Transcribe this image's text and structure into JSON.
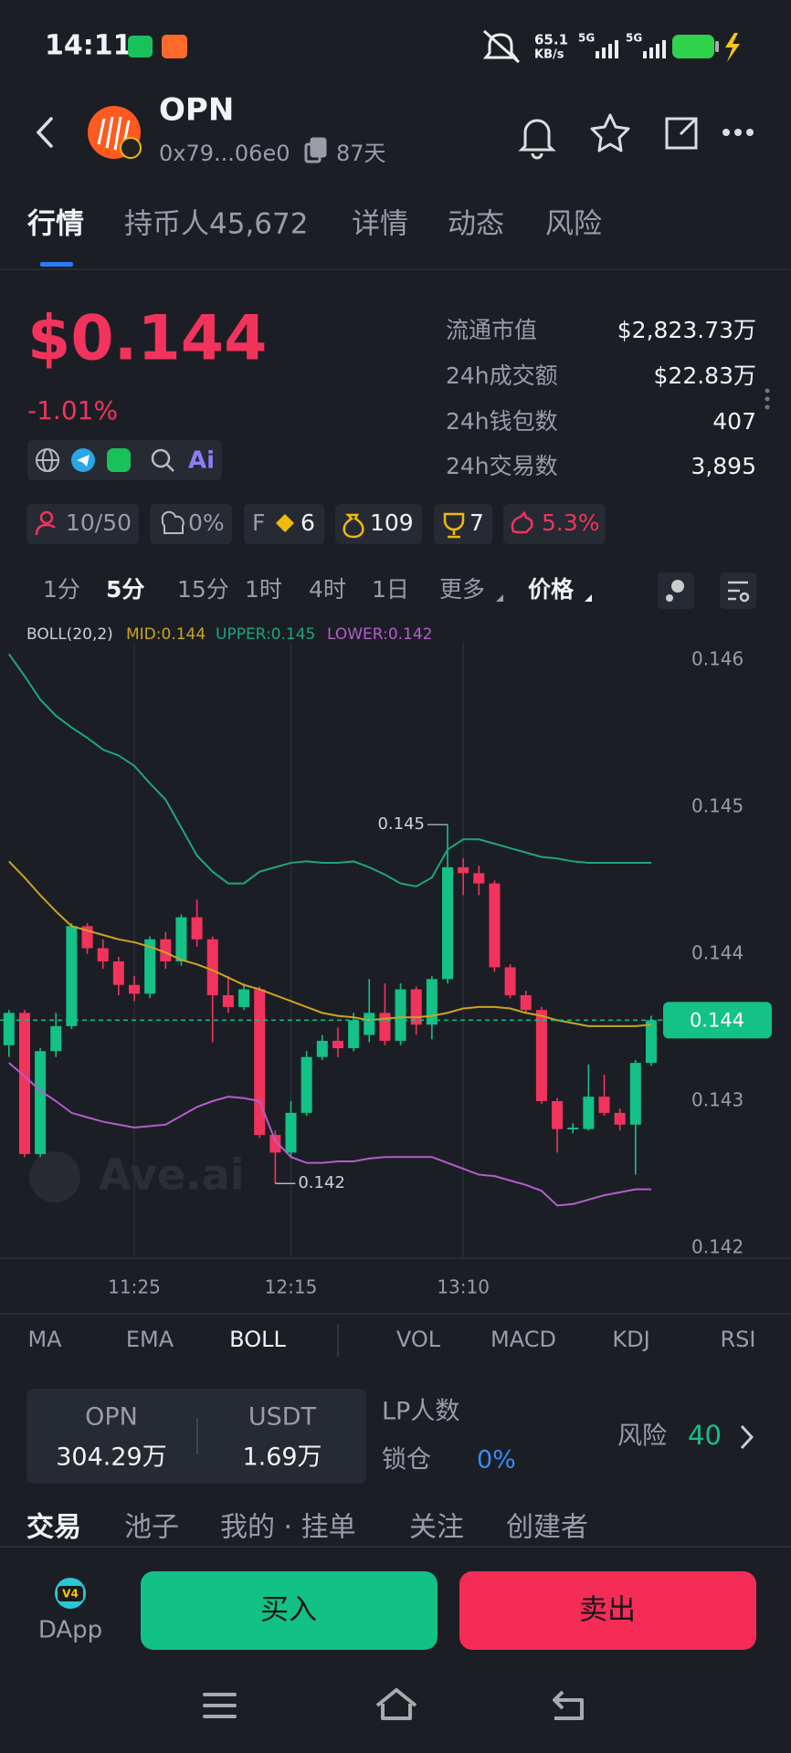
{
  "status_bar": {
    "time": "14:11",
    "speed": "65.1",
    "speed_unit": "KB/s",
    "net1": "5G",
    "net2": "5G"
  },
  "header": {
    "title": "OPN",
    "address": "0x79...06e0",
    "age": "87天"
  },
  "tabs": [
    "行情",
    "持币人45,672",
    "详情",
    "动态",
    "风险"
  ],
  "price": {
    "value": "$0.144",
    "change": "-1.01%",
    "ai": "Ai"
  },
  "stats": [
    [
      "流通市值",
      "$2,823.73万"
    ],
    [
      "24h成交额",
      "$22.83万"
    ],
    [
      "24h钱包数",
      "407"
    ],
    [
      "24h交易数",
      "3,895"
    ]
  ],
  "badges": {
    "holders": "10/50",
    "dev": "0%",
    "f_label": "F",
    "f_value": "6",
    "bag": "109",
    "trophy": "7",
    "pig": "5.3%"
  },
  "timeframes": [
    "1分",
    "5分",
    "15分",
    "1时",
    "4时",
    "1日",
    "更多",
    "价格"
  ],
  "chart_data": {
    "type": "candlestick",
    "legend_title": "BOLL(20,2)",
    "watermark": "Ave.ai",
    "up_color": "#14c186",
    "down_color": "#f2345c",
    "categories": [
      null,
      null,
      null,
      null,
      null,
      null,
      null,
      null,
      "11:25",
      null,
      null,
      null,
      null,
      null,
      null,
      null,
      null,
      null,
      "12:15",
      null,
      null,
      null,
      null,
      null,
      null,
      null,
      null,
      null,
      null,
      "13:10",
      null,
      null,
      null,
      null,
      null,
      null,
      null,
      null,
      null,
      null,
      null,
      null
    ],
    "open": [
      0.14338,
      0.1436,
      0.14264,
      0.14334,
      0.14351,
      0.14419,
      0.14404,
      0.14395,
      0.14379,
      0.14373,
      0.1441,
      0.14395,
      0.14425,
      0.1441,
      0.14372,
      0.14364,
      0.14376,
      0.14277,
      0.14265,
      0.14292,
      0.1433,
      0.14341,
      0.14336,
      0.14345,
      0.1436,
      0.14341,
      0.14376,
      0.14352,
      0.14383,
      0.14459,
      0.14455,
      0.14448,
      0.14391,
      0.14372,
      0.14362,
      0.143,
      0.14281,
      0.14281,
      0.14303,
      0.14292,
      0.14284,
      0.14326
    ],
    "high": [
      0.14362,
      0.14362,
      0.14336,
      0.1436,
      0.14421,
      0.14421,
      0.1441,
      0.14398,
      0.14385,
      0.14412,
      0.14415,
      0.14427,
      0.14437,
      0.14412,
      0.14385,
      0.1438,
      0.14378,
      0.1428,
      0.143,
      0.14334,
      0.14345,
      0.1435,
      0.1436,
      0.14383,
      0.1438,
      0.1438,
      0.14378,
      0.14385,
      0.14488,
      0.14465,
      0.1446,
      0.1445,
      0.14393,
      0.14375,
      0.14364,
      0.14302,
      0.14285,
      0.14325,
      0.14318,
      0.14295,
      0.14328,
      0.14358
    ],
    "low": [
      0.1433,
      0.14262,
      0.14262,
      0.1433,
      0.14349,
      0.144,
      0.1439,
      0.14372,
      0.14368,
      0.1437,
      0.1439,
      0.14392,
      0.14405,
      0.1434,
      0.1436,
      0.14362,
      0.14275,
      0.14244,
      0.14262,
      0.1429,
      0.14328,
      0.1433,
      0.14334,
      0.1434,
      0.14338,
      0.14338,
      0.14345,
      0.14342,
      0.1438,
      0.1444,
      0.1444,
      0.14388,
      0.1437,
      0.1436,
      0.14298,
      0.14265,
      0.14278,
      0.1428,
      0.1429,
      0.1428,
      0.1425,
      0.14324
    ],
    "close": [
      0.1436,
      0.14264,
      0.14334,
      0.14351,
      0.14419,
      0.14404,
      0.14395,
      0.14379,
      0.14373,
      0.1441,
      0.14395,
      0.14425,
      0.1441,
      0.14372,
      0.14364,
      0.14376,
      0.14277,
      0.14265,
      0.14292,
      0.1433,
      0.14341,
      0.14336,
      0.14355,
      0.1436,
      0.14341,
      0.14376,
      0.14352,
      0.14383,
      0.14459,
      0.14455,
      0.14448,
      0.14391,
      0.14372,
      0.14362,
      0.143,
      0.14281,
      0.14282,
      0.14303,
      0.14292,
      0.14284,
      0.14326,
      0.14355
    ],
    "series": [
      {
        "name": "MID:0.144",
        "color": "#c9a61f",
        "values": [
          0.14463,
          0.14452,
          0.1444,
          0.14429,
          0.14419,
          0.14416,
          0.14413,
          0.1441,
          0.14408,
          0.14405,
          0.14401,
          0.14396,
          0.14393,
          0.14389,
          0.14384,
          0.14379,
          0.14376,
          0.14372,
          0.14368,
          0.14364,
          0.1436,
          0.14358,
          0.14357,
          0.14355,
          0.14356,
          0.14357,
          0.14357,
          0.14358,
          0.1436,
          0.14363,
          0.14364,
          0.14364,
          0.14363,
          0.1436,
          0.14358,
          0.14355,
          0.14353,
          0.14351,
          0.14351,
          0.14351,
          0.14351,
          0.14352
        ]
      },
      {
        "name": "UPPER:0.145",
        "color": "#1fa57c",
        "values": [
          0.14604,
          0.14589,
          0.14573,
          0.14562,
          0.14554,
          0.14547,
          0.14539,
          0.14535,
          0.14528,
          0.14516,
          0.14505,
          0.14486,
          0.14467,
          0.14456,
          0.14448,
          0.14448,
          0.14456,
          0.14459,
          0.14462,
          0.14463,
          0.14462,
          0.14462,
          0.14463,
          0.14459,
          0.14454,
          0.14448,
          0.14446,
          0.14452,
          0.14471,
          0.14478,
          0.14478,
          0.14475,
          0.14472,
          0.14469,
          0.14466,
          0.14465,
          0.14463,
          0.14462,
          0.14462,
          0.14462,
          0.14462,
          0.14462
        ]
      },
      {
        "name": "LOWER:0.142",
        "color": "#b35ec9",
        "values": [
          0.14326,
          0.14317,
          0.14307,
          0.143,
          0.14292,
          0.14289,
          0.14286,
          0.14284,
          0.14282,
          0.14283,
          0.14284,
          0.1429,
          0.14296,
          0.143,
          0.14303,
          0.14302,
          0.143,
          0.14273,
          0.14262,
          0.14258,
          0.14258,
          0.14259,
          0.14259,
          0.14261,
          0.14262,
          0.14262,
          0.14262,
          0.14262,
          0.14258,
          0.14254,
          0.1425,
          0.14249,
          0.14246,
          0.14243,
          0.14239,
          0.14229,
          0.1423,
          0.14233,
          0.14236,
          0.14238,
          0.1424,
          0.1424
        ]
      }
    ],
    "high_label": {
      "value": 0.14488,
      "label": "0.145"
    },
    "low_label": {
      "value": 0.14244,
      "label": "0.142"
    },
    "last_price": {
      "value": 0.14355,
      "label": "0.144"
    },
    "ylim": [
      0.142,
      0.146
    ],
    "yticks": [
      0.146,
      0.145,
      0.144,
      0.143,
      0.142
    ]
  },
  "indicator_tabs": [
    "MA",
    "EMA",
    "BOLL",
    "VOL",
    "MACD",
    "KDJ",
    "RSI"
  ],
  "pool": {
    "token": "OPN",
    "token_amount": "304.29万",
    "quote": "USDT",
    "quote_amount": "1.69万",
    "lp_label": "LP人数",
    "lock_label": "锁仓",
    "lock_value": "0%",
    "risk_label": "风险",
    "risk_value": "40"
  },
  "bottom_tabs": [
    "交易",
    "池子",
    "我的 · 挂单",
    "关注",
    "创建者"
  ],
  "actions": {
    "dapp_badge": "V4",
    "dapp": "DApp",
    "buy": "买入",
    "sell": "卖出"
  }
}
